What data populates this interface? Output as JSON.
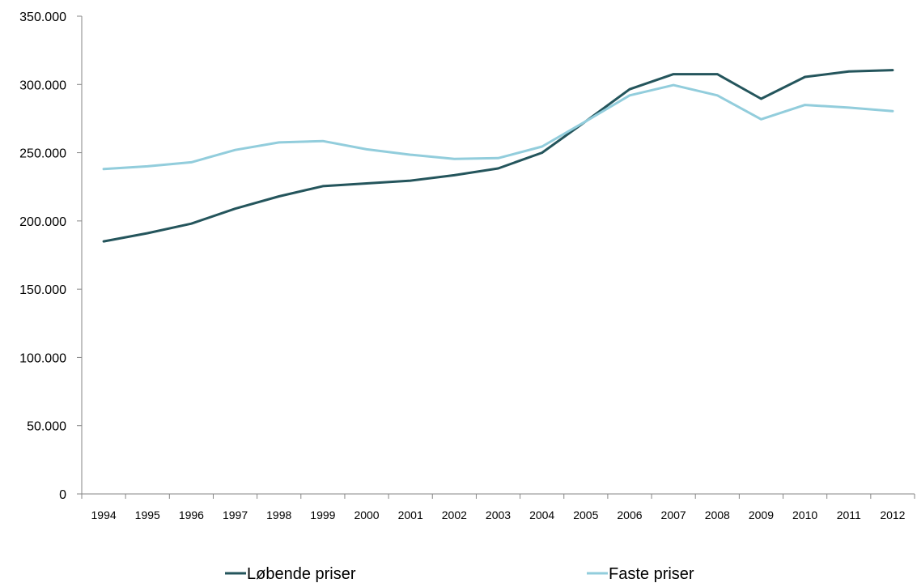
{
  "chart_data": {
    "type": "line",
    "title": "",
    "xlabel": "",
    "ylabel": "",
    "x": [
      "1994",
      "1995",
      "1996",
      "1997",
      "1998",
      "1999",
      "2000",
      "2001",
      "2002",
      "2003",
      "2004",
      "2005",
      "2006",
      "2007",
      "2008",
      "2009",
      "2010",
      "2011",
      "2012"
    ],
    "ylim": [
      0,
      350000
    ],
    "yticks": [
      0,
      50000,
      100000,
      150000,
      200000,
      250000,
      300000,
      350000
    ],
    "ytick_labels": [
      "0",
      "50.000",
      "100.000",
      "150.000",
      "200.000",
      "250.000",
      "300.000",
      "350.000"
    ],
    "grid": false,
    "legend_position": "bottom",
    "series": [
      {
        "name": "Løbende priser",
        "color": "#24555c",
        "values": [
          185000,
          191000,
          198000,
          209000,
          218000,
          225500,
          227500,
          229500,
          233500,
          238500,
          250000,
          273000,
          296500,
          307500,
          307500,
          289500,
          305500,
          309500,
          310500
        ]
      },
      {
        "name": "Faste priser",
        "color": "#92cddc",
        "values": [
          238000,
          240000,
          243000,
          252000,
          257500,
          258500,
          252500,
          248500,
          245500,
          246000,
          254500,
          273000,
          292000,
          299500,
          292000,
          274500,
          285000,
          283000,
          280500
        ]
      }
    ]
  }
}
